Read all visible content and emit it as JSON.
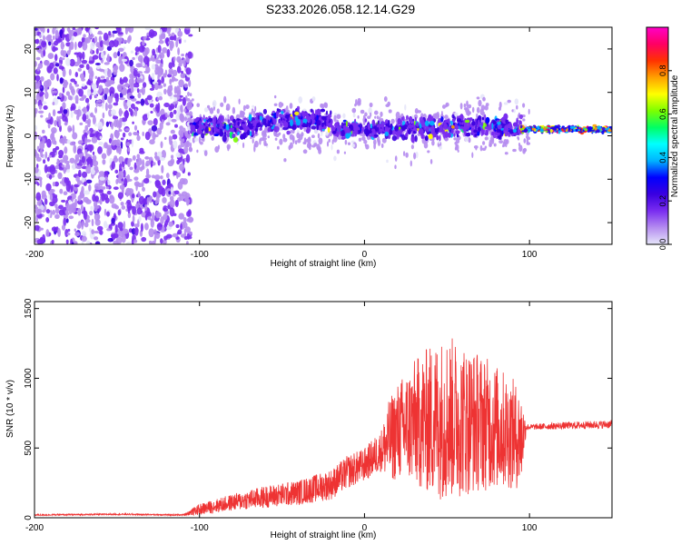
{
  "title": "S233.2026.058.12.14.G29",
  "chart_data": [
    {
      "type": "heatmap",
      "xlabel": "Height of straight line (km)",
      "ylabel": "Frequency (Hz)",
      "xlim": [
        -200,
        150
      ],
      "ylim": [
        -25,
        25
      ],
      "xticks": [
        -200,
        -100,
        0,
        100
      ],
      "yticks": [
        -20,
        -10,
        0,
        10,
        20
      ],
      "colorbar": {
        "label": "Normalized spectral amplitude",
        "range": [
          0,
          1
        ],
        "ticks": [
          "0.0",
          "0.2",
          "0.4",
          "0.6",
          "0.8"
        ],
        "colors": [
          "#e6e6fa",
          "#b58cf0",
          "#7a2df0",
          "#3a00e0",
          "#0000ff",
          "#00b4ff",
          "#00ffff",
          "#00ff64",
          "#7cff00",
          "#ffff00",
          "#ffa000",
          "#ff3200",
          "#ff0064",
          "#ff00c8"
        ]
      },
      "regions": [
        {
          "x": [
            -200,
            -105
          ],
          "freq_band": [
            -25,
            25
          ],
          "amplitude": "low, broadband"
        },
        {
          "x": [
            -105,
            95
          ],
          "freq_band": [
            -5,
            8
          ],
          "amplitude": "medium, band centered near 2 Hz"
        },
        {
          "x": [
            95,
            150
          ],
          "freq_band": [
            0,
            3
          ],
          "amplitude": "high, narrow line near 2 Hz"
        }
      ]
    },
    {
      "type": "line",
      "xlabel": "Height of straight line (km)",
      "ylabel": "SNR (10 * v/v)",
      "xlim": [
        -200,
        150
      ],
      "ylim": [
        0,
        1550
      ],
      "xticks": [
        -200,
        -100,
        0,
        100
      ],
      "yticks": [
        0,
        500,
        1000,
        1500
      ],
      "color": "#ee3333",
      "series": [
        {
          "x": [
            -200,
            -150,
            -110,
            -100,
            -80,
            -60,
            -40,
            -20,
            -10,
            0,
            10,
            15,
            20,
            30,
            40,
            50,
            60,
            70,
            80,
            90,
            95,
            98,
            100,
            120,
            150
          ],
          "y": [
            20,
            25,
            20,
            60,
            110,
            150,
            180,
            240,
            330,
            380,
            480,
            550,
            620,
            680,
            700,
            720,
            700,
            690,
            650,
            600,
            560,
            650,
            650,
            660,
            670
          ],
          "y_spread": [
            5,
            5,
            5,
            40,
            60,
            80,
            90,
            110,
            120,
            120,
            150,
            300,
            350,
            450,
            550,
            600,
            550,
            500,
            450,
            400,
            350,
            30,
            20,
            25,
            30
          ]
        }
      ]
    }
  ]
}
